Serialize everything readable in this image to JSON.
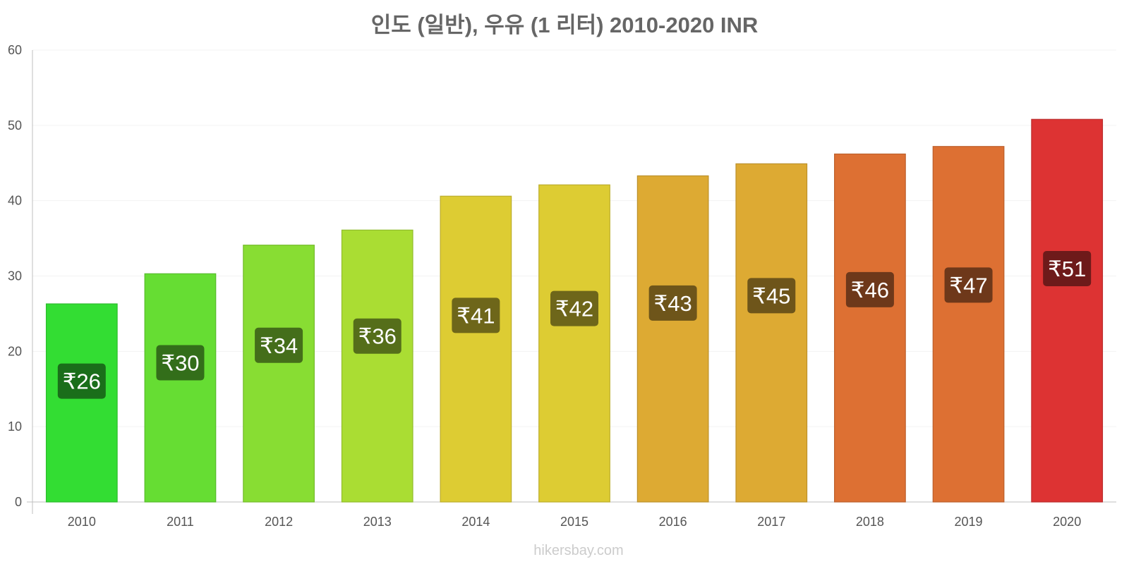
{
  "chart_data": {
    "type": "bar",
    "title": "인도 (일반), 우유 (1 리터) 2010-2020 INR",
    "xlabel": "",
    "ylabel": "",
    "currency_symbol": "₹",
    "categories": [
      "2010",
      "2011",
      "2012",
      "2013",
      "2014",
      "2015",
      "2016",
      "2017",
      "2018",
      "2019",
      "2020"
    ],
    "values": [
      26.3,
      30.3,
      34.1,
      36.1,
      40.6,
      42.1,
      43.3,
      44.9,
      46.2,
      47.2,
      50.8
    ],
    "data_labels": [
      "₹26",
      "₹30",
      "₹34",
      "₹36",
      "₹41",
      "₹42",
      "₹43",
      "₹45",
      "₹46",
      "₹47",
      "₹51"
    ],
    "bar_colors": [
      "#33dd33",
      "#66dd33",
      "#88dd33",
      "#aadd33",
      "#ddcc33",
      "#ddcc33",
      "#ddaa33",
      "#ddaa33",
      "#dd7033",
      "#dd7033",
      "#dd3333"
    ],
    "label_box_colors": [
      "#1a6e1a",
      "#336e1a",
      "#446e1a",
      "#556e1a",
      "#6e661a",
      "#6e661a",
      "#6e551a",
      "#6e551a",
      "#6e381a",
      "#6e381a",
      "#6e1a1a"
    ],
    "ylim": [
      0,
      60
    ],
    "yticks": [
      0,
      10,
      20,
      30,
      40,
      50,
      60
    ],
    "grid": true,
    "legend": "none"
  },
  "watermark": "hikersbay.com"
}
